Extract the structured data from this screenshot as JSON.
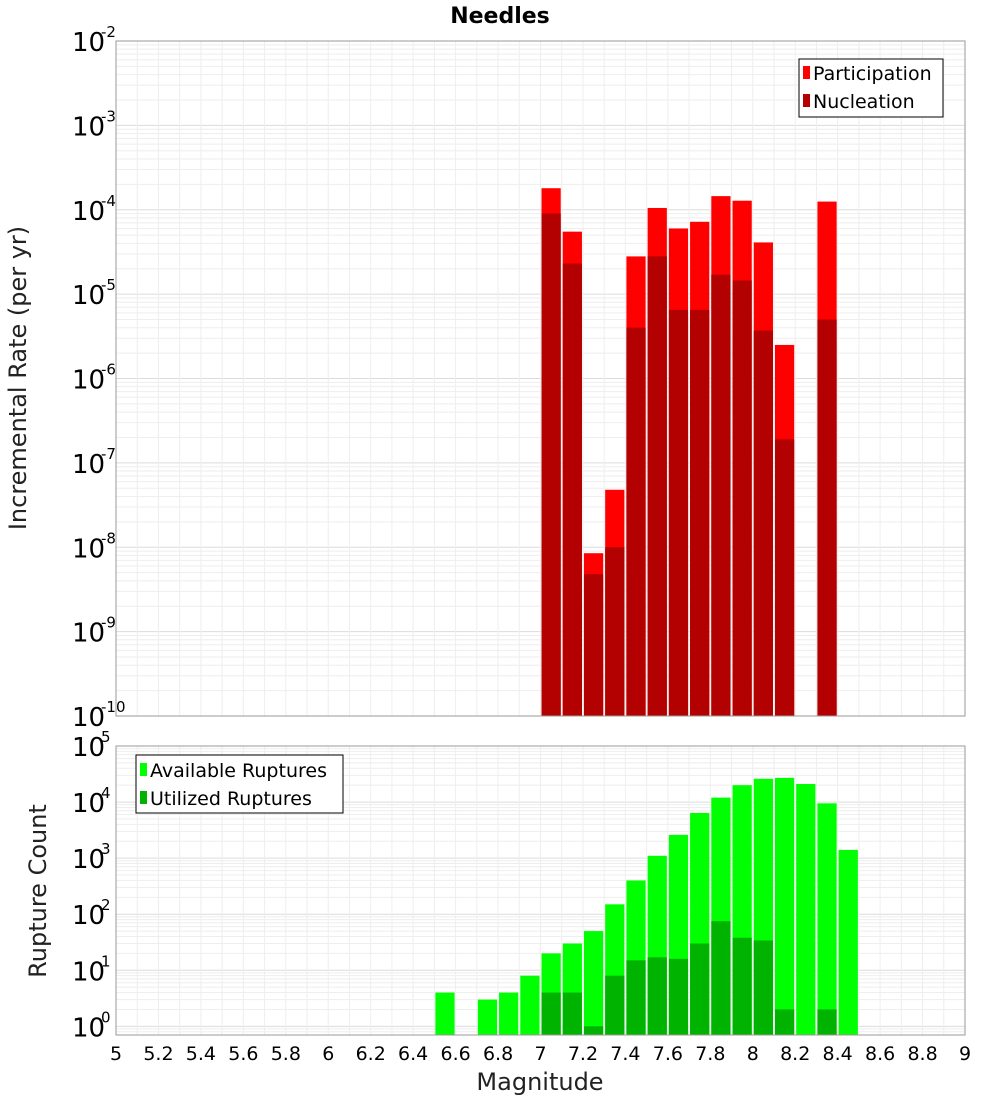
{
  "chart_data": [
    {
      "type": "bar",
      "title": "Needles",
      "xlabel": "Magnitude",
      "ylabel": "Incremental Rate (per yr)",
      "yscale": "log",
      "xlim": [
        5,
        9
      ],
      "ylim": [
        1e-10,
        0.01
      ],
      "bin_width": 0.1,
      "y_ticks": [
        {
          "base": "10",
          "exp": "-10"
        },
        {
          "base": "10",
          "exp": "-9"
        },
        {
          "base": "10",
          "exp": "-8"
        },
        {
          "base": "10",
          "exp": "-7"
        },
        {
          "base": "10",
          "exp": "-6"
        },
        {
          "base": "10",
          "exp": "-5"
        },
        {
          "base": "10",
          "exp": "-4"
        },
        {
          "base": "10",
          "exp": "-3"
        },
        {
          "base": "10",
          "exp": "-2"
        }
      ],
      "legend_position": "top-right",
      "series": [
        {
          "name": "Participation",
          "color": "#ff0000",
          "x": [
            7.05,
            7.15,
            7.25,
            7.35,
            7.45,
            7.55,
            7.65,
            7.75,
            7.85,
            7.95,
            8.05,
            8.15,
            8.35
          ],
          "values": [
            0.00018,
            5.5e-05,
            8.5e-09,
            4.8e-08,
            2.8e-05,
            0.000105,
            6e-05,
            7.2e-05,
            0.000145,
            0.000128,
            4.1e-05,
            2.5e-06,
            0.000125
          ]
        },
        {
          "name": "Nucleation",
          "color": "#b30000",
          "x": [
            7.05,
            7.15,
            7.25,
            7.35,
            7.45,
            7.55,
            7.65,
            7.75,
            7.85,
            7.95,
            8.05,
            8.15,
            8.35
          ],
          "values": [
            9e-05,
            2.3e-05,
            4.8e-09,
            1e-08,
            4e-06,
            2.8e-05,
            6.5e-06,
            6.5e-06,
            1.7e-05,
            1.45e-05,
            3.7e-06,
            1.9e-07,
            5e-06
          ]
        }
      ]
    },
    {
      "type": "bar",
      "title": "",
      "xlabel": "Magnitude",
      "ylabel": "Rupture Count",
      "yscale": "log",
      "xlim": [
        5,
        9
      ],
      "ylim": [
        0.7,
        100000.0
      ],
      "bin_width": 0.1,
      "x_ticks": [
        "5",
        "5.2",
        "5.4",
        "5.6",
        "5.8",
        "6",
        "6.2",
        "6.4",
        "6.6",
        "6.8",
        "7",
        "7.2",
        "7.4",
        "7.6",
        "7.8",
        "8",
        "8.2",
        "8.4",
        "8.6",
        "8.8",
        "9"
      ],
      "y_ticks": [
        {
          "base": "10",
          "exp": "0"
        },
        {
          "base": "10",
          "exp": "1"
        },
        {
          "base": "10",
          "exp": "2"
        },
        {
          "base": "10",
          "exp": "3"
        },
        {
          "base": "10",
          "exp": "4"
        },
        {
          "base": "10",
          "exp": "5"
        }
      ],
      "legend_position": "top-left",
      "series": [
        {
          "name": "Available Ruptures",
          "color": "#00ff00",
          "x": [
            6.55,
            6.75,
            6.85,
            6.95,
            7.05,
            7.15,
            7.25,
            7.35,
            7.45,
            7.55,
            7.65,
            7.75,
            7.85,
            7.95,
            8.05,
            8.15,
            8.25,
            8.35,
            8.45
          ],
          "values": [
            4,
            3,
            4,
            8,
            20,
            30,
            50,
            150,
            400,
            1100,
            2600,
            6400,
            12000,
            20000,
            26000,
            27000,
            21000,
            9500,
            1400
          ]
        },
        {
          "name": "Utilized Ruptures",
          "color": "#00b300",
          "x": [
            7.05,
            7.15,
            7.25,
            7.35,
            7.45,
            7.55,
            7.65,
            7.75,
            7.85,
            7.95,
            8.05,
            8.15,
            8.35
          ],
          "values": [
            4,
            4,
            1,
            8,
            15,
            17,
            16,
            30,
            75,
            38,
            34,
            2,
            2
          ]
        }
      ]
    }
  ]
}
